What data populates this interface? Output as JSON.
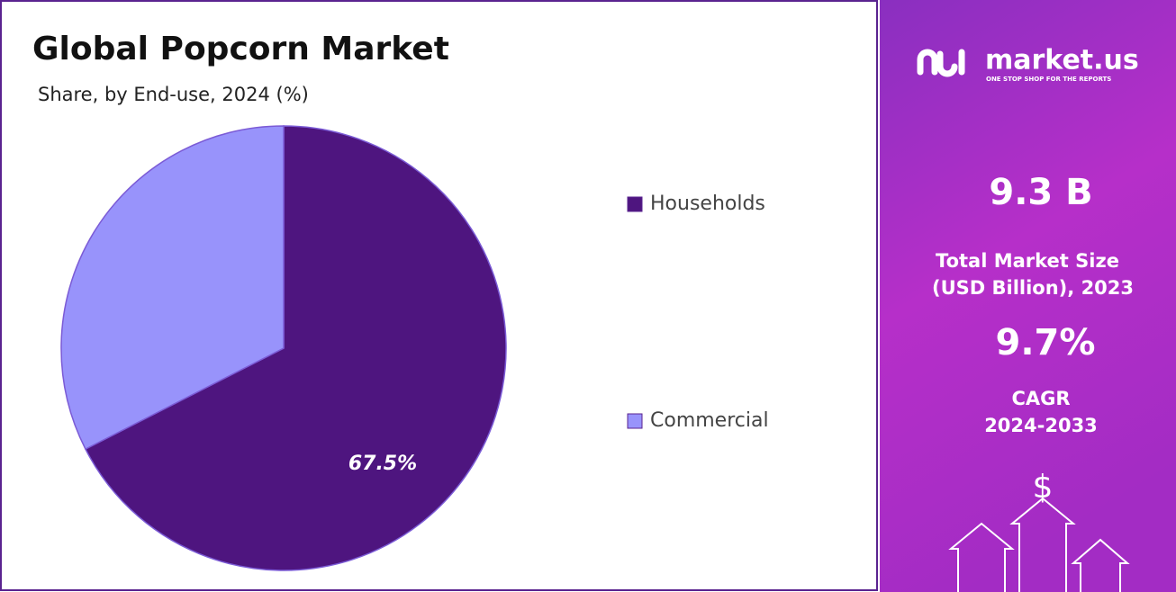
{
  "chart_data": {
    "type": "pie",
    "title": "Global Popcorn Market",
    "subtitle": "Share, by End-use, 2024 (%)",
    "categories": [
      "Households",
      "Commercial"
    ],
    "values": [
      67.5,
      32.5
    ],
    "value_labels": [
      "67.5%",
      null
    ],
    "colors": [
      "#4e157f",
      "#9893fb"
    ],
    "legend": "right"
  },
  "side_panel": {
    "logo": "market.us",
    "tagline": "ONE STOP SHOP FOR THE REPORTS",
    "market_size": "9.3 B",
    "market_size_label": [
      "Total Market Size",
      "(USD Billion), 2023"
    ],
    "cagr": "9.7%",
    "cagr_label": [
      "CAGR",
      "2024-2033"
    ],
    "icon_symbol": "$"
  }
}
